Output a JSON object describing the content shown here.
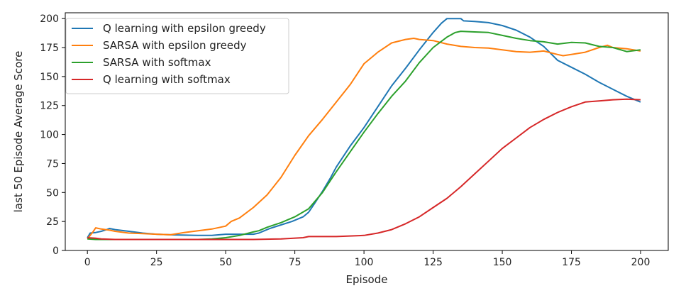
{
  "chart_data": {
    "type": "line",
    "xlabel": "Episode",
    "ylabel": "last 50 Episode Average Score",
    "xlim": [
      -8,
      210
    ],
    "ylim": [
      0,
      205
    ],
    "x_ticks": [
      0,
      25,
      50,
      75,
      100,
      125,
      150,
      175,
      200
    ],
    "y_ticks": [
      0,
      25,
      50,
      75,
      100,
      125,
      150,
      175,
      200
    ],
    "grid": false,
    "legend_position": "top-left",
    "series": [
      {
        "name": "Q learning with epsilon greedy",
        "color": "#1f77b4",
        "points": [
          [
            0,
            11
          ],
          [
            1,
            15
          ],
          [
            3,
            15.5
          ],
          [
            5,
            16.5
          ],
          [
            7,
            18
          ],
          [
            8,
            19
          ],
          [
            10,
            18
          ],
          [
            15,
            16.5
          ],
          [
            20,
            15
          ],
          [
            25,
            14
          ],
          [
            30,
            13.5
          ],
          [
            40,
            13
          ],
          [
            45,
            13
          ],
          [
            50,
            14
          ],
          [
            55,
            14
          ],
          [
            60,
            14
          ],
          [
            62,
            15
          ],
          [
            64,
            17
          ],
          [
            66,
            19
          ],
          [
            70,
            22
          ],
          [
            74,
            25
          ],
          [
            78,
            29
          ],
          [
            80,
            33
          ],
          [
            82,
            40
          ],
          [
            85,
            51
          ],
          [
            88,
            63
          ],
          [
            90,
            72
          ],
          [
            95,
            90
          ],
          [
            100,
            106
          ],
          [
            105,
            124
          ],
          [
            110,
            142
          ],
          [
            115,
            157
          ],
          [
            120,
            173
          ],
          [
            125,
            188
          ],
          [
            128,
            196
          ],
          [
            130,
            200
          ],
          [
            135,
            200
          ],
          [
            136,
            198
          ],
          [
            140,
            197.5
          ],
          [
            145,
            196.5
          ],
          [
            150,
            194
          ],
          [
            155,
            190
          ],
          [
            160,
            184
          ],
          [
            165,
            176
          ],
          [
            170,
            164
          ],
          [
            175,
            158
          ],
          [
            180,
            152
          ],
          [
            185,
            145
          ],
          [
            190,
            139
          ],
          [
            195,
            133
          ],
          [
            200,
            128
          ]
        ]
      },
      {
        "name": "SARSA with epsilon greedy",
        "color": "#ff7f0e",
        "points": [
          [
            0,
            10
          ],
          [
            2,
            16
          ],
          [
            3,
            19.5
          ],
          [
            5,
            18.5
          ],
          [
            8,
            17.5
          ],
          [
            10,
            16.5
          ],
          [
            15,
            15
          ],
          [
            20,
            14.5
          ],
          [
            25,
            14
          ],
          [
            30,
            13.5
          ],
          [
            35,
            15.5
          ],
          [
            40,
            17
          ],
          [
            45,
            18.5
          ],
          [
            50,
            21
          ],
          [
            52,
            25
          ],
          [
            55,
            28
          ],
          [
            60,
            37
          ],
          [
            65,
            48
          ],
          [
            70,
            63
          ],
          [
            75,
            82
          ],
          [
            80,
            99
          ],
          [
            85,
            113
          ],
          [
            90,
            128
          ],
          [
            95,
            143
          ],
          [
            100,
            161
          ],
          [
            105,
            171
          ],
          [
            110,
            179
          ],
          [
            115,
            182
          ],
          [
            118,
            183
          ],
          [
            120,
            182
          ],
          [
            125,
            181
          ],
          [
            130,
            178
          ],
          [
            135,
            176
          ],
          [
            140,
            175
          ],
          [
            145,
            174.5
          ],
          [
            150,
            173
          ],
          [
            155,
            171.5
          ],
          [
            160,
            171
          ],
          [
            165,
            172
          ],
          [
            170,
            169
          ],
          [
            172,
            168
          ],
          [
            175,
            169
          ],
          [
            180,
            171
          ],
          [
            185,
            175
          ],
          [
            188,
            177
          ],
          [
            190,
            175
          ],
          [
            195,
            174
          ],
          [
            200,
            172
          ]
        ]
      },
      {
        "name": "SARSA with softmax",
        "color": "#2ca02c",
        "points": [
          [
            0,
            10
          ],
          [
            3,
            9.5
          ],
          [
            5,
            9.5
          ],
          [
            10,
            9.5
          ],
          [
            20,
            9.5
          ],
          [
            30,
            9.5
          ],
          [
            40,
            9.5
          ],
          [
            45,
            10
          ],
          [
            50,
            11
          ],
          [
            55,
            13
          ],
          [
            60,
            16
          ],
          [
            62,
            17
          ],
          [
            65,
            20
          ],
          [
            70,
            24
          ],
          [
            75,
            29
          ],
          [
            80,
            36
          ],
          [
            85,
            50
          ],
          [
            90,
            68
          ],
          [
            95,
            85
          ],
          [
            100,
            102
          ],
          [
            105,
            118
          ],
          [
            110,
            133
          ],
          [
            115,
            146
          ],
          [
            120,
            162
          ],
          [
            125,
            175
          ],
          [
            130,
            184
          ],
          [
            133,
            188
          ],
          [
            135,
            189
          ],
          [
            140,
            188.5
          ],
          [
            145,
            188
          ],
          [
            150,
            185.5
          ],
          [
            155,
            183
          ],
          [
            160,
            181
          ],
          [
            165,
            180
          ],
          [
            170,
            178
          ],
          [
            175,
            179.5
          ],
          [
            180,
            179
          ],
          [
            185,
            176
          ],
          [
            190,
            175
          ],
          [
            195,
            171.5
          ],
          [
            200,
            173
          ]
        ]
      },
      {
        "name": "Q learning with softmax",
        "color": "#d62728",
        "points": [
          [
            0,
            11
          ],
          [
            3,
            10.5
          ],
          [
            5,
            10
          ],
          [
            10,
            9.5
          ],
          [
            20,
            9.5
          ],
          [
            30,
            9.5
          ],
          [
            40,
            9.5
          ],
          [
            50,
            9.5
          ],
          [
            60,
            9.5
          ],
          [
            70,
            10
          ],
          [
            78,
            11
          ],
          [
            80,
            12
          ],
          [
            90,
            12
          ],
          [
            100,
            13
          ],
          [
            105,
            15
          ],
          [
            110,
            18
          ],
          [
            115,
            23
          ],
          [
            120,
            29
          ],
          [
            125,
            37
          ],
          [
            130,
            45
          ],
          [
            135,
            55
          ],
          [
            140,
            66
          ],
          [
            145,
            77
          ],
          [
            150,
            88
          ],
          [
            155,
            97
          ],
          [
            160,
            106
          ],
          [
            165,
            113
          ],
          [
            170,
            119
          ],
          [
            175,
            124
          ],
          [
            180,
            128
          ],
          [
            185,
            129
          ],
          [
            190,
            130
          ],
          [
            195,
            130.5
          ],
          [
            200,
            130
          ]
        ]
      }
    ]
  }
}
